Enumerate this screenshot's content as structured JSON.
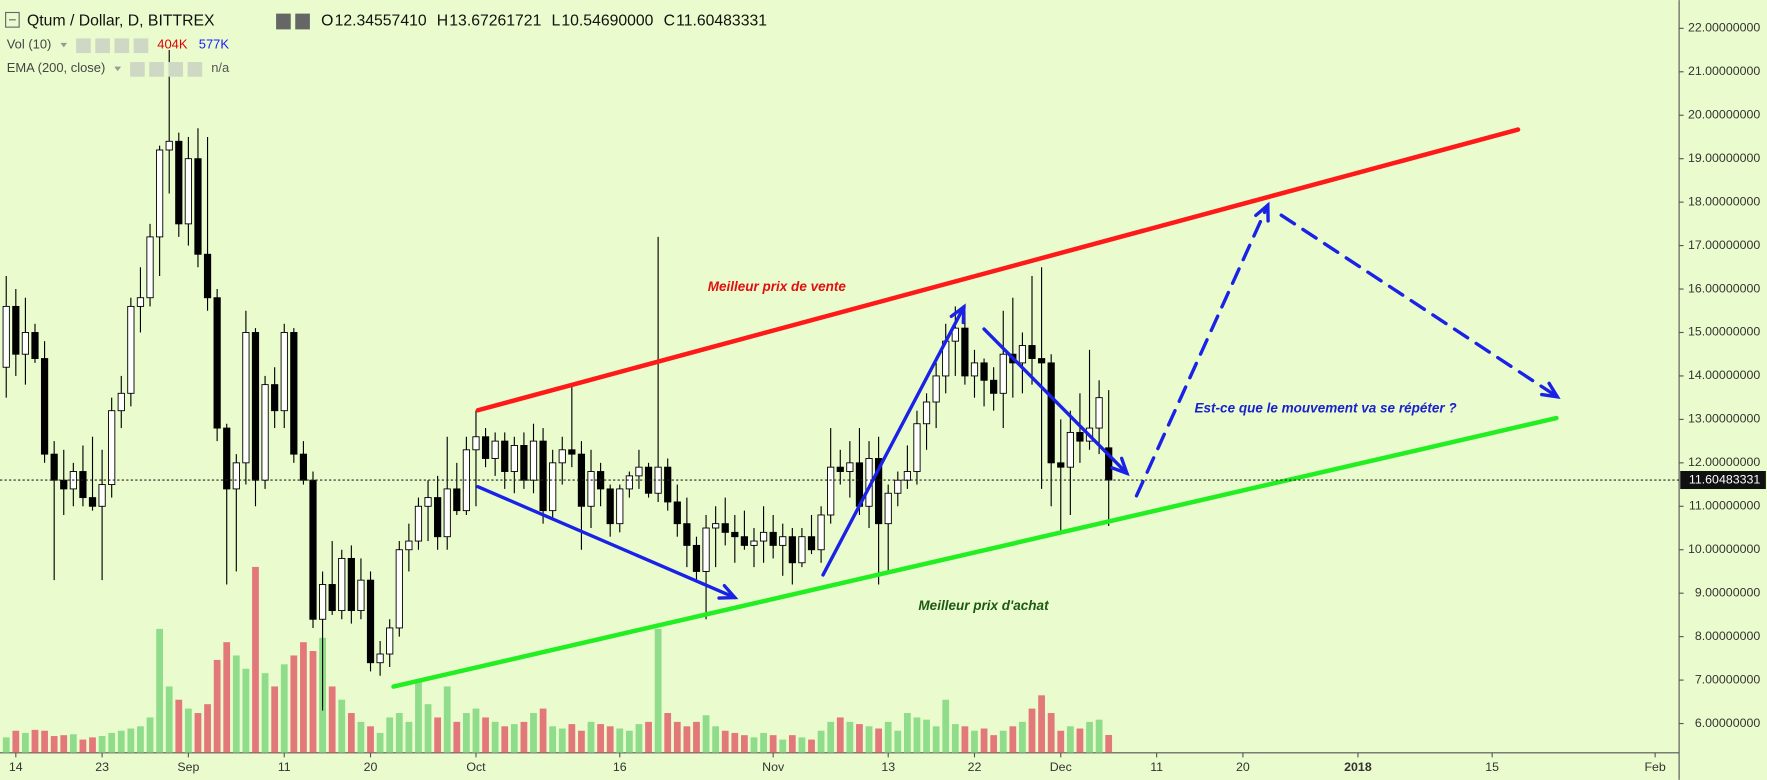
{
  "chart_data": {
    "type": "candlestick",
    "title": "Qtum / Dollar, D, BITTREX",
    "ohlc_labels": [
      "O",
      "H",
      "L",
      "C"
    ],
    "last_value_labels": [
      "12.34557410",
      "13.67261721",
      "10.54690000",
      "11.60483331"
    ],
    "indicators": [
      {
        "name": "Vol (10)",
        "value_labels": [
          "404K",
          "577K"
        ],
        "colors": [
          "#e00000",
          "#1a1aff"
        ]
      },
      {
        "name": "EMA (200, close)",
        "value_labels": [
          "n/a"
        ],
        "colors": [
          "#555555"
        ]
      }
    ],
    "x": [
      -1,
      0,
      1,
      2,
      3,
      4,
      5,
      6,
      7,
      8,
      9,
      10,
      11,
      12,
      13,
      14,
      15,
      16,
      17,
      18,
      19,
      20,
      21,
      22,
      23,
      24,
      25,
      26,
      27,
      28,
      29,
      30,
      31,
      32,
      33,
      34,
      35,
      36,
      37,
      38,
      39,
      40,
      41,
      42,
      43,
      44,
      45,
      46,
      47,
      48,
      49,
      50,
      51,
      52,
      53,
      54,
      55,
      56,
      57,
      58,
      59,
      60,
      61,
      62,
      63,
      64,
      65,
      66,
      67,
      68,
      69,
      70,
      71,
      72,
      73,
      74,
      75,
      76,
      77,
      78,
      79,
      80,
      81,
      82,
      83,
      84,
      85,
      86,
      87,
      88,
      89,
      90,
      91,
      92,
      93,
      94,
      95,
      96,
      97,
      98,
      99,
      100,
      101,
      102,
      103,
      104,
      105,
      106,
      107,
      108,
      109,
      110,
      111,
      112,
      113,
      114
    ],
    "open": [
      14.2,
      15.6,
      14.5,
      15.0,
      14.4,
      12.2,
      11.6,
      11.4,
      11.8,
      11.2,
      11.0,
      11.5,
      13.2,
      13.6,
      15.6,
      15.8,
      17.2,
      19.2,
      19.4,
      17.5,
      19.0,
      16.8,
      15.8,
      12.8,
      11.4,
      12.0,
      15.0,
      11.6,
      13.8,
      13.2,
      15.0,
      12.2,
      11.6,
      8.4,
      9.2,
      8.6,
      9.8,
      8.6,
      9.3,
      7.4,
      7.6,
      8.2,
      10.0,
      10.2,
      11.0,
      11.2,
      10.3,
      11.4,
      10.9,
      12.3,
      12.6,
      12.1,
      12.5,
      11.8,
      12.4,
      11.6,
      12.5,
      10.9,
      12.0,
      12.3,
      12.2,
      11.0,
      11.8,
      11.4,
      10.6,
      11.4,
      11.7,
      11.9,
      11.3,
      11.9,
      11.1,
      10.6,
      10.1,
      9.5,
      10.5,
      10.6,
      10.4,
      10.3,
      10.1,
      10.2,
      10.4,
      10.1,
      10.3,
      9.7,
      10.3,
      10.0,
      10.8,
      11.9,
      11.8,
      12.0,
      11.0,
      12.1,
      10.6,
      11.3,
      11.6,
      11.8,
      12.9,
      13.4,
      14.0,
      14.8,
      15.1,
      14.0,
      14.3,
      13.9,
      13.6,
      14.5,
      14.3,
      14.7,
      14.4,
      14.3,
      12.0,
      11.9,
      12.7,
      12.5,
      12.8,
      12.3455741
    ],
    "high": [
      16.3,
      16.0,
      15.8,
      15.2,
      14.8,
      12.5,
      12.3,
      12.0,
      12.4,
      12.6,
      12.3,
      13.5,
      14.0,
      15.8,
      16.5,
      17.5,
      19.3,
      21.5,
      19.6,
      19.5,
      19.7,
      19.5,
      16.0,
      12.9,
      12.2,
      15.5,
      15.1,
      14.0,
      14.2,
      15.2,
      15.1,
      12.5,
      11.8,
      9.5,
      10.2,
      10.0,
      10.1,
      9.8,
      9.5,
      7.9,
      8.4,
      10.2,
      10.6,
      11.2,
      11.6,
      11.7,
      12.6,
      12.0,
      12.6,
      13.2,
      12.8,
      12.7,
      12.7,
      12.6,
      12.7,
      12.9,
      12.8,
      12.3,
      12.6,
      13.8,
      12.5,
      12.3,
      12.0,
      11.5,
      11.5,
      11.8,
      12.3,
      12.0,
      17.2,
      12.1,
      11.5,
      11.2,
      10.3,
      10.8,
      11.0,
      11.2,
      10.8,
      10.9,
      10.5,
      11.0,
      10.8,
      10.6,
      10.5,
      10.5,
      10.8,
      11.0,
      12.8,
      12.3,
      12.5,
      12.8,
      12.5,
      12.6,
      11.5,
      11.8,
      12.4,
      13.2,
      13.6,
      14.3,
      15.2,
      15.6,
      15.5,
      14.6,
      14.4,
      14.2,
      15.5,
      15.8,
      15.0,
      16.3,
      16.5,
      14.5,
      13.0,
      13.2,
      13.6,
      14.6,
      13.9,
      13.67261721
    ],
    "low": [
      13.5,
      14.0,
      13.8,
      14.3,
      12.0,
      9.3,
      10.8,
      11.0,
      11.0,
      10.9,
      9.3,
      11.2,
      12.8,
      13.3,
      15.0,
      15.6,
      16.3,
      18.2,
      17.2,
      17.0,
      16.5,
      15.5,
      12.5,
      9.2,
      9.5,
      11.5,
      11.0,
      11.4,
      12.8,
      12.8,
      12.0,
      11.5,
      8.2,
      6.3,
      8.5,
      8.4,
      8.3,
      8.4,
      7.2,
      7.1,
      7.3,
      8.0,
      9.5,
      10.0,
      10.2,
      10.0,
      10.0,
      10.8,
      10.8,
      11.0,
      11.9,
      11.7,
      11.4,
      11.3,
      11.4,
      11.3,
      10.6,
      10.7,
      11.5,
      11.9,
      10.0,
      10.5,
      11.0,
      10.3,
      10.4,
      11.2,
      11.4,
      11.2,
      11.1,
      10.9,
      10.3,
      9.6,
      9.3,
      8.4,
      9.6,
      10.1,
      9.7,
      10.0,
      9.6,
      9.7,
      9.8,
      9.4,
      9.2,
      9.6,
      9.9,
      9.7,
      10.6,
      11.5,
      11.2,
      10.8,
      10.5,
      9.2,
      9.5,
      11.0,
      11.4,
      11.5,
      12.3,
      12.8,
      13.6,
      14.0,
      13.8,
      13.5,
      13.3,
      13.2,
      12.8,
      13.5,
      13.6,
      13.8,
      11.4,
      11.0,
      10.4,
      10.8,
      12.0,
      12.3,
      12.2,
      10.5469
    ],
    "close": [
      15.6,
      14.5,
      15.0,
      14.4,
      12.2,
      11.6,
      11.4,
      11.8,
      11.2,
      11.0,
      11.5,
      13.2,
      13.6,
      15.6,
      15.8,
      17.2,
      19.2,
      19.4,
      17.5,
      19.0,
      16.8,
      15.8,
      12.8,
      11.4,
      12.0,
      15.0,
      11.6,
      13.8,
      13.2,
      15.0,
      12.2,
      11.6,
      8.4,
      9.2,
      8.6,
      9.8,
      8.6,
      9.3,
      7.4,
      7.6,
      8.2,
      10.0,
      10.2,
      11.0,
      11.2,
      10.3,
      11.4,
      10.9,
      12.3,
      12.6,
      12.1,
      12.5,
      11.8,
      12.4,
      11.6,
      12.5,
      10.9,
      12.0,
      12.3,
      12.2,
      11.0,
      11.8,
      11.4,
      10.6,
      11.4,
      11.7,
      11.9,
      11.3,
      11.9,
      11.1,
      10.6,
      10.1,
      9.5,
      10.5,
      10.6,
      10.4,
      10.3,
      10.1,
      10.2,
      10.4,
      10.1,
      10.3,
      9.7,
      10.3,
      10.0,
      10.8,
      11.9,
      11.8,
      12.0,
      11.0,
      12.1,
      10.6,
      11.3,
      11.6,
      11.8,
      12.9,
      13.4,
      14.0,
      14.8,
      15.1,
      14.0,
      14.3,
      13.9,
      13.6,
      14.5,
      14.3,
      14.7,
      14.4,
      14.3,
      12.0,
      11.9,
      12.7,
      12.5,
      12.8,
      13.5,
      11.60483331
    ],
    "volume": [
      350,
      500,
      450,
      520,
      500,
      380,
      400,
      420,
      300,
      350,
      380,
      450,
      500,
      550,
      600,
      800,
      2800,
      1500,
      1200,
      1000,
      900,
      1100,
      2100,
      2500,
      2200,
      1900,
      4200,
      1800,
      1500,
      2000,
      2200,
      2500,
      2300,
      2600,
      1500,
      1200,
      900,
      700,
      600,
      450,
      800,
      900,
      700,
      1600,
      1100,
      800,
      1500,
      700,
      900,
      1000,
      800,
      700,
      600,
      650,
      700,
      900,
      1000,
      600,
      550,
      650,
      500,
      700,
      650,
      600,
      550,
      500,
      650,
      700,
      2800,
      900,
      700,
      600,
      700,
      850,
      600,
      500,
      450,
      400,
      350,
      450,
      400,
      300,
      400,
      350,
      300,
      500,
      700,
      800,
      700,
      650,
      600,
      550,
      700,
      500,
      900,
      800,
      750,
      600,
      1200,
      650,
      600,
      500,
      550,
      400,
      500,
      600,
      700,
      1000,
      1300,
      900,
      500,
      600,
      550,
      700,
      750,
      404
    ],
    "xlim": [
      -1.65,
      173.5
    ],
    "xticks": [
      {
        "value": 0,
        "label": "14"
      },
      {
        "value": 9,
        "label": "23"
      },
      {
        "value": 18,
        "label": "Sep"
      },
      {
        "value": 28,
        "label": "11"
      },
      {
        "value": 37,
        "label": "20"
      },
      {
        "value": 48,
        "label": "Oct"
      },
      {
        "value": 63,
        "label": "16"
      },
      {
        "value": 79,
        "label": "Nov"
      },
      {
        "value": 91,
        "label": "13"
      },
      {
        "value": 100,
        "label": "22"
      },
      {
        "value": 109,
        "label": "Dec"
      },
      {
        "value": 119,
        "label": "11"
      },
      {
        "value": 128,
        "label": "20"
      },
      {
        "value": 140,
        "label": "2018"
      },
      {
        "value": 154,
        "label": "15"
      },
      {
        "value": 171,
        "label": "Feb"
      }
    ],
    "ylim": [
      5.325,
      22.65
    ],
    "yticks": [
      {
        "value": 6,
        "label": "6.00000000"
      },
      {
        "value": 7,
        "label": "7.00000000"
      },
      {
        "value": 8,
        "label": "8.00000000"
      },
      {
        "value": 9,
        "label": "9.00000000"
      },
      {
        "value": 10,
        "label": "10.00000000"
      },
      {
        "value": 11,
        "label": "11.00000000"
      },
      {
        "value": 12,
        "label": "12.00000000"
      },
      {
        "value": 13,
        "label": "13.00000000"
      },
      {
        "value": 14,
        "label": "14.00000000"
      },
      {
        "value": 15,
        "label": "15.00000000"
      },
      {
        "value": 16,
        "label": "16.00000000"
      },
      {
        "value": 17,
        "label": "17.00000000"
      },
      {
        "value": 18,
        "label": "18.00000000"
      },
      {
        "value": 19,
        "label": "19.00000000"
      },
      {
        "value": 20,
        "label": "20.00000000"
      },
      {
        "value": 21,
        "label": "21.00000000"
      },
      {
        "value": 22,
        "label": "22.00000000"
      }
    ],
    "colors": {
      "up": "#ffffff",
      "down": "#000000",
      "wick": "#000000",
      "vol_up": "#7fd67f",
      "vol_down": "#e2606c"
    },
    "drawings": [
      {
        "color": "#ff1a1a",
        "dashed": false,
        "arrow": false,
        "x": [
          48.2,
          156.7
        ],
        "y": [
          13.21,
          19.67
        ]
      },
      {
        "color": "#22ee22",
        "dashed": false,
        "arrow": false,
        "x": [
          39.4,
          160.7
        ],
        "y": [
          6.85,
          13.03
        ]
      },
      {
        "color": "#1a22e6",
        "dashed": false,
        "arrow": true,
        "x": [
          48.2,
          75.0
        ],
        "y": [
          11.45,
          8.9
        ]
      },
      {
        "color": "#1a22e6",
        "dashed": false,
        "arrow": true,
        "x": [
          84.2,
          98.9
        ],
        "y": [
          9.42,
          15.59
        ]
      },
      {
        "color": "#1a22e6",
        "dashed": false,
        "arrow": true,
        "x": [
          101.0,
          115.9
        ],
        "y": [
          15.08,
          11.76
        ]
      },
      {
        "color": "#1a22e6",
        "dashed": true,
        "arrow": true,
        "x": [
          116.9,
          130.6
        ],
        "y": [
          11.24,
          17.93
        ]
      },
      {
        "color": "#1a22e6",
        "dashed": true,
        "arrow": true,
        "x": [
          132.0,
          160.8
        ],
        "y": [
          17.7,
          13.52
        ]
      }
    ],
    "annotations": [
      {
        "text": "Meilleur prix de vente",
        "color": "#e01010"
      },
      {
        "text": "Meilleur prix d'achat",
        "color": "#1d5a12"
      },
      {
        "text": "Est-ce que le mouvement va se répéter ?",
        "color": "#1a22cc"
      }
    ]
  }
}
